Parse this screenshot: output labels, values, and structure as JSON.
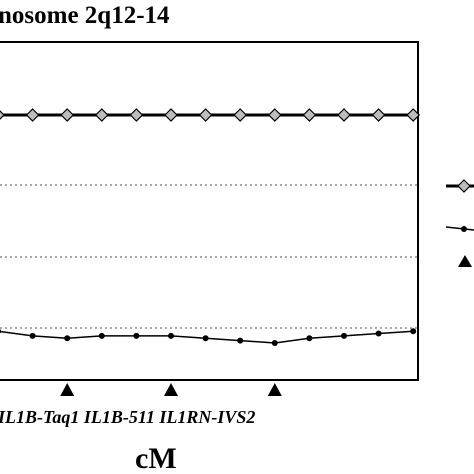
{
  "chart_data": {
    "type": "line",
    "title": "nosome 2q12-14",
    "xlabel": "cM",
    "ylabel": "",
    "grid": true,
    "legend": "right",
    "gridlines_dotted": 4,
    "x": [
      0,
      1,
      2,
      3,
      4,
      5,
      6,
      7,
      8,
      9,
      10,
      11,
      12
    ],
    "series": [
      {
        "marker": "diamond",
        "values": [
          1.0,
          1.0,
          1.0,
          1.0,
          1.0,
          1.0,
          1.0,
          1.0,
          1.0,
          1.0,
          1.0,
          1.0,
          1.0
        ]
      },
      {
        "marker": "dot",
        "values": [
          0.08,
          0.06,
          0.05,
          0.06,
          0.06,
          0.06,
          0.05,
          0.04,
          0.03,
          0.05,
          0.06,
          0.07,
          0.08
        ]
      }
    ],
    "markers": [
      {
        "label": "IL1B-Taq1",
        "x": 2
      },
      {
        "label": "IL1B-511",
        "x": 5
      },
      {
        "label": "IL1RN-IVS2",
        "x": 8
      }
    ],
    "marker_label_text": "IL1B-Taq1 IL1B-511 IL1RN-IVS2",
    "colors": {
      "line": "#000000",
      "diamond_fill": "#bdbdbd",
      "grid": "#555555"
    }
  }
}
